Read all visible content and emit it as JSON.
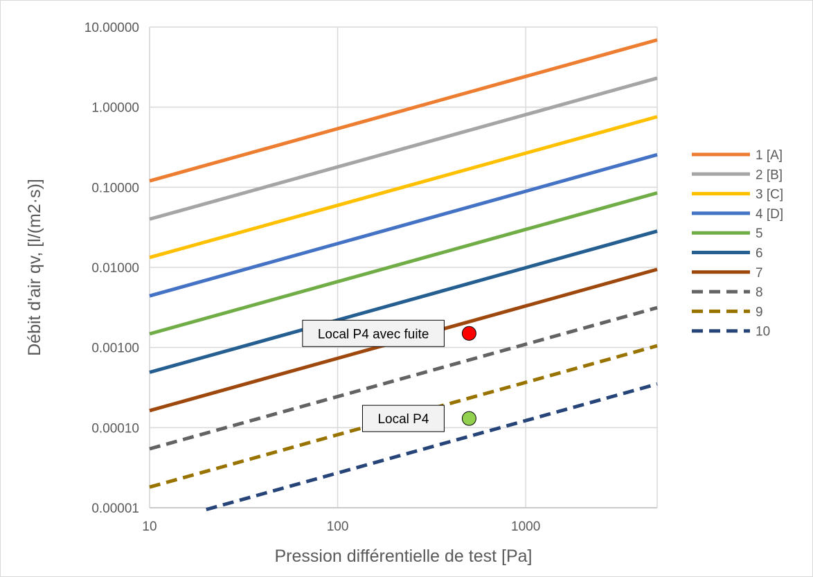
{
  "chart_data": {
    "type": "line",
    "x_scale": "log",
    "y_scale": "log",
    "xlim": [
      10,
      5000
    ],
    "ylim": [
      1e-05,
      10
    ],
    "xlabel": "Pression différentielle de test [Pa]",
    "ylabel": "Débit d'air qv, [l/(m2·s)]",
    "x_ticks": [
      10,
      100,
      1000
    ],
    "x_tick_labels": [
      "10",
      "100",
      "1000"
    ],
    "y_ticks": [
      1e-05,
      0.0001,
      0.001,
      0.01,
      0.1,
      1,
      10
    ],
    "y_tick_labels": [
      "0.00001",
      "0.00010",
      "0.00100",
      "0.01000",
      "0.10000",
      "1.00000",
      "10.00000"
    ],
    "grid": true,
    "legend_position": "right",
    "series": [
      {
        "name": "1 [A]",
        "color": "#ED7D31",
        "dash": "solid",
        "x": [
          10,
          5000
        ],
        "y": [
          0.12,
          6.9
        ]
      },
      {
        "name": "2 [B]",
        "color": "#A5A5A5",
        "dash": "solid",
        "x": [
          10,
          5000
        ],
        "y": [
          0.04,
          2.3
        ]
      },
      {
        "name": "3 [C]",
        "color": "#FFC000",
        "dash": "solid",
        "x": [
          10,
          5000
        ],
        "y": [
          0.0133,
          0.76
        ]
      },
      {
        "name": "4 [D]",
        "color": "#4472C4",
        "dash": "solid",
        "x": [
          10,
          5000
        ],
        "y": [
          0.0044,
          0.255
        ]
      },
      {
        "name": "5",
        "color": "#70AD47",
        "dash": "solid",
        "x": [
          10,
          5000
        ],
        "y": [
          0.00148,
          0.085
        ]
      },
      {
        "name": "6",
        "color": "#255E91",
        "dash": "solid",
        "x": [
          10,
          5000
        ],
        "y": [
          0.00049,
          0.0283
        ]
      },
      {
        "name": "7",
        "color": "#9E480E",
        "dash": "solid",
        "x": [
          10,
          5000
        ],
        "y": [
          0.000163,
          0.00943
        ]
      },
      {
        "name": "8",
        "color": "#636363",
        "dash": "dashed",
        "x": [
          10,
          5000
        ],
        "y": [
          5.43e-05,
          0.00314
        ]
      },
      {
        "name": "9",
        "color": "#997300",
        "dash": "dashed",
        "x": [
          10,
          5000
        ],
        "y": [
          1.81e-05,
          0.00105
        ]
      },
      {
        "name": "10",
        "color": "#264478",
        "dash": "dashed",
        "x": [
          20,
          5000
        ],
        "y": [
          9.5e-06,
          0.00035
        ]
      }
    ],
    "points": [
      {
        "x": 500,
        "y": 0.0015,
        "color": "#FF0000"
      },
      {
        "x": 500,
        "y": 0.00013,
        "color": "#92D050"
      }
    ],
    "annotations": [
      {
        "text": "Local P4 avec fuite",
        "point_index": 0
      },
      {
        "text": "Local P4",
        "point_index": 1
      }
    ]
  }
}
